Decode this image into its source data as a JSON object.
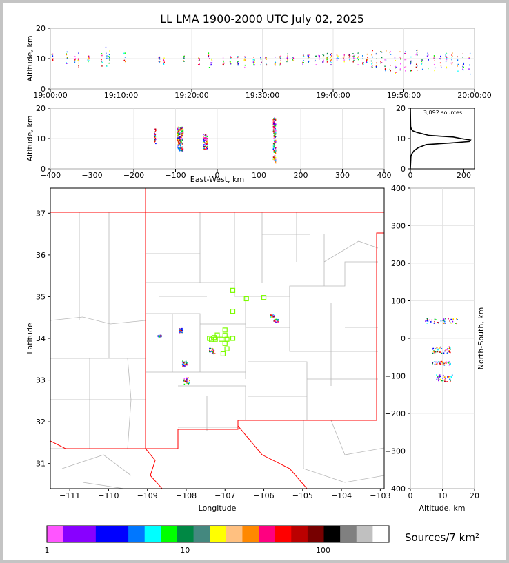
{
  "title": "LL LMA 1900-2000 UTC July 02, 2025",
  "chart_data": [
    {
      "type": "scatter",
      "id": "altitude-time",
      "ylabel": "Altitude, km",
      "ylim": [
        0,
        20
      ],
      "yticks": [
        "0",
        "10",
        "20"
      ],
      "xticks": [
        "19:00:00",
        "19:10:00",
        "19:20:00",
        "19:30:00",
        "19:40:00",
        "19:50:00",
        "20:00:00"
      ],
      "xlim_minutes": [
        0,
        60
      ],
      "grid": true,
      "source_columns": [
        {
          "t": 0.3,
          "alt": [
            9,
            12
          ]
        },
        {
          "t": 2.3,
          "alt": [
            8,
            13
          ]
        },
        {
          "t": 3.5,
          "alt": [
            9,
            11
          ]
        },
        {
          "t": 4.0,
          "alt": [
            6,
            12
          ]
        },
        {
          "t": 5.4,
          "alt": [
            9,
            11
          ]
        },
        {
          "t": 7.3,
          "alt": [
            7,
            13
          ]
        },
        {
          "t": 7.9,
          "alt": [
            7,
            14
          ]
        },
        {
          "t": 8.3,
          "alt": [
            8,
            13
          ]
        },
        {
          "t": 10.5,
          "alt": [
            8,
            12
          ]
        },
        {
          "t": 15.4,
          "alt": [
            9,
            11
          ]
        },
        {
          "t": 16.1,
          "alt": [
            8,
            11
          ]
        },
        {
          "t": 18.9,
          "alt": [
            9,
            11
          ]
        },
        {
          "t": 21.0,
          "alt": [
            8,
            11
          ]
        },
        {
          "t": 22.4,
          "alt": [
            7,
            12
          ]
        },
        {
          "t": 22.8,
          "alt": [
            8,
            11
          ]
        },
        {
          "t": 24.5,
          "alt": [
            8,
            11
          ]
        },
        {
          "t": 25.5,
          "alt": [
            7,
            11
          ]
        },
        {
          "t": 26.5,
          "alt": [
            8,
            11
          ]
        },
        {
          "t": 27.5,
          "alt": [
            6,
            11
          ]
        },
        {
          "t": 28.8,
          "alt": [
            8,
            11
          ]
        },
        {
          "t": 29.8,
          "alt": [
            8,
            11
          ]
        },
        {
          "t": 30.5,
          "alt": [
            8,
            11
          ]
        },
        {
          "t": 31.8,
          "alt": [
            7,
            12
          ]
        },
        {
          "t": 32.5,
          "alt": [
            8,
            11
          ]
        },
        {
          "t": 33.5,
          "alt": [
            9,
            12
          ]
        },
        {
          "t": 34.3,
          "alt": [
            9,
            11
          ]
        },
        {
          "t": 35.8,
          "alt": [
            8,
            12
          ]
        },
        {
          "t": 36.5,
          "alt": [
            9,
            12
          ]
        },
        {
          "t": 37.5,
          "alt": [
            8,
            13
          ]
        },
        {
          "t": 38.0,
          "alt": [
            9,
            12
          ]
        },
        {
          "t": 38.6,
          "alt": [
            9,
            12
          ]
        },
        {
          "t": 39.2,
          "alt": [
            9,
            12
          ]
        },
        {
          "t": 39.7,
          "alt": [
            8,
            12
          ]
        },
        {
          "t": 40.6,
          "alt": [
            9,
            12
          ]
        },
        {
          "t": 41.5,
          "alt": [
            9,
            12
          ]
        },
        {
          "t": 42.3,
          "alt": [
            9,
            12
          ]
        },
        {
          "t": 42.9,
          "alt": [
            9,
            12
          ]
        },
        {
          "t": 43.5,
          "alt": [
            8,
            13
          ]
        },
        {
          "t": 44.2,
          "alt": [
            8,
            12
          ]
        },
        {
          "t": 44.8,
          "alt": [
            8,
            12
          ]
        },
        {
          "t": 45.5,
          "alt": [
            7,
            13
          ]
        },
        {
          "t": 46.1,
          "alt": [
            7,
            13
          ]
        },
        {
          "t": 46.8,
          "alt": [
            6,
            13
          ]
        },
        {
          "t": 47.4,
          "alt": [
            6,
            13
          ]
        },
        {
          "t": 48.1,
          "alt": [
            6,
            14
          ]
        },
        {
          "t": 48.8,
          "alt": [
            5,
            13
          ]
        },
        {
          "t": 49.5,
          "alt": [
            5,
            13
          ]
        },
        {
          "t": 50.2,
          "alt": [
            6,
            13
          ]
        },
        {
          "t": 51.0,
          "alt": [
            6,
            13
          ]
        },
        {
          "t": 51.8,
          "alt": [
            6,
            13
          ]
        },
        {
          "t": 52.6,
          "alt": [
            6,
            12
          ]
        },
        {
          "t": 53.4,
          "alt": [
            6,
            12
          ]
        },
        {
          "t": 54.3,
          "alt": [
            6,
            12
          ]
        },
        {
          "t": 55.2,
          "alt": [
            6,
            12
          ]
        },
        {
          "t": 56.0,
          "alt": [
            7,
            12
          ]
        },
        {
          "t": 56.8,
          "alt": [
            7,
            12
          ]
        },
        {
          "t": 57.6,
          "alt": [
            6,
            12
          ]
        },
        {
          "t": 58.4,
          "alt": [
            6,
            12
          ]
        },
        {
          "t": 59.3,
          "alt": [
            5,
            12
          ]
        }
      ]
    },
    {
      "type": "scatter",
      "id": "altitude-eastwest",
      "xlabel": "East-West, km",
      "ylabel": "Altitude, km",
      "xlim": [
        -400,
        400
      ],
      "ylim": [
        0,
        20
      ],
      "xticks": [
        "−400",
        "−300",
        "−200",
        "−100",
        "0",
        "100",
        "200",
        "300",
        "400"
      ],
      "yticks": [
        "0",
        "10",
        "20"
      ],
      "grid": true,
      "clusters": [
        {
          "x": -90,
          "y": 10,
          "w": 14,
          "h": 8
        },
        {
          "x": -30,
          "y": 9,
          "w": 10,
          "h": 5
        },
        {
          "x": 136,
          "y": 9.5,
          "w": 6,
          "h": 15
        },
        {
          "x": -150,
          "y": 11,
          "w": 3,
          "h": 5
        }
      ]
    },
    {
      "type": "line",
      "id": "altitude-histogram",
      "annotation": "3,092 sources",
      "xlim": [
        0,
        240
      ],
      "ylim": [
        0,
        20
      ],
      "xticks": [
        "0",
        "200"
      ],
      "yticks": [
        "0",
        "10",
        "20"
      ],
      "alt": [
        0,
        4,
        5,
        6,
        7,
        8,
        8.5,
        9,
        9.5,
        10,
        10.5,
        11,
        12,
        12.5,
        13,
        14,
        20
      ],
      "count": [
        0,
        2,
        6,
        14,
        30,
        60,
        150,
        220,
        225,
        190,
        160,
        70,
        25,
        10,
        4,
        1,
        0
      ]
    },
    {
      "type": "heatmap",
      "id": "plan-view",
      "xlabel": "Longitude",
      "ylabel": "Latitude",
      "xlim": [
        -111.5,
        -102.9
      ],
      "ylim": [
        30.4,
        37.6
      ],
      "xticks": [
        "−111",
        "−110",
        "−109",
        "−108",
        "−107",
        "−106",
        "−105",
        "−104",
        "−103"
      ],
      "yticks": [
        "31",
        "32",
        "33",
        "34",
        "35",
        "36",
        "37"
      ],
      "station_color": "#7cfc00",
      "border_color": "#ff0000",
      "stations": [
        {
          "lon": -106.8,
          "lat": 35.15
        },
        {
          "lon": -106.45,
          "lat": 34.95
        },
        {
          "lon": -106.0,
          "lat": 34.98
        },
        {
          "lon": -106.8,
          "lat": 34.65
        },
        {
          "lon": -107.0,
          "lat": 34.2
        },
        {
          "lon": -107.0,
          "lat": 34.07
        },
        {
          "lon": -107.2,
          "lat": 34.08
        },
        {
          "lon": -107.4,
          "lat": 34.0
        },
        {
          "lon": -107.25,
          "lat": 33.98
        },
        {
          "lon": -107.1,
          "lat": 33.98
        },
        {
          "lon": -106.95,
          "lat": 33.98
        },
        {
          "lon": -106.8,
          "lat": 34.0
        },
        {
          "lon": -107.0,
          "lat": 33.88
        },
        {
          "lon": -106.95,
          "lat": 33.75
        },
        {
          "lon": -107.05,
          "lat": 33.63
        },
        {
          "lon": -107.35,
          "lat": 33.97
        },
        {
          "lon": -107.28,
          "lat": 34.02
        }
      ],
      "clusters": [
        {
          "lon": -107.35,
          "lat": 33.7,
          "w": 0.15,
          "h": 0.15
        },
        {
          "lon": -108.0,
          "lat": 33.0,
          "w": 0.14,
          "h": 0.18
        },
        {
          "lon": -108.05,
          "lat": 33.4,
          "w": 0.12,
          "h": 0.14
        },
        {
          "lon": -108.15,
          "lat": 34.2,
          "w": 0.08,
          "h": 0.1
        },
        {
          "lon": -108.7,
          "lat": 34.07,
          "w": 0.1,
          "h": 0.05
        },
        {
          "lon": -105.8,
          "lat": 34.55,
          "w": 0.1,
          "h": 0.06
        },
        {
          "lon": -105.7,
          "lat": 34.43,
          "w": 0.12,
          "h": 0.08
        }
      ]
    },
    {
      "type": "scatter",
      "id": "northsouth-altitude",
      "xlabel": "Altitude, km",
      "ylabel": "North-South, km",
      "xlim": [
        0,
        20
      ],
      "ylim": [
        -400,
        400
      ],
      "xticks": [
        "0",
        "10",
        "20"
      ],
      "yticks": [
        "400",
        "300",
        "200",
        "100",
        "0",
        "−100",
        "−200",
        "−300",
        "−400"
      ],
      "grid": true,
      "clusters": [
        {
          "x": 9.5,
          "y": 47,
          "w": 10,
          "h": 14
        },
        {
          "x": 9.5,
          "y": -30,
          "w": 6,
          "h": 18
        },
        {
          "x": 9.5,
          "y": -65,
          "w": 6,
          "h": 10
        },
        {
          "x": 10.5,
          "y": -105,
          "w": 5,
          "h": 20
        }
      ]
    }
  ],
  "colorbar": {
    "label": "Sources/7 km²",
    "ticks": [
      "1",
      "10",
      "100"
    ],
    "colors": [
      "#ff55ff",
      "#8800ff",
      "#8800ff",
      "#0000ff",
      "#0000ff",
      "#0077ff",
      "#00ffff",
      "#00ff00",
      "#008844",
      "#44887f",
      "#ffff00",
      "#ffc080",
      "#ff8800",
      "#ff0080",
      "#ff0000",
      "#bb0000",
      "#770000",
      "#000000",
      "#808080",
      "#c0c0c0",
      "#ffffff"
    ]
  }
}
